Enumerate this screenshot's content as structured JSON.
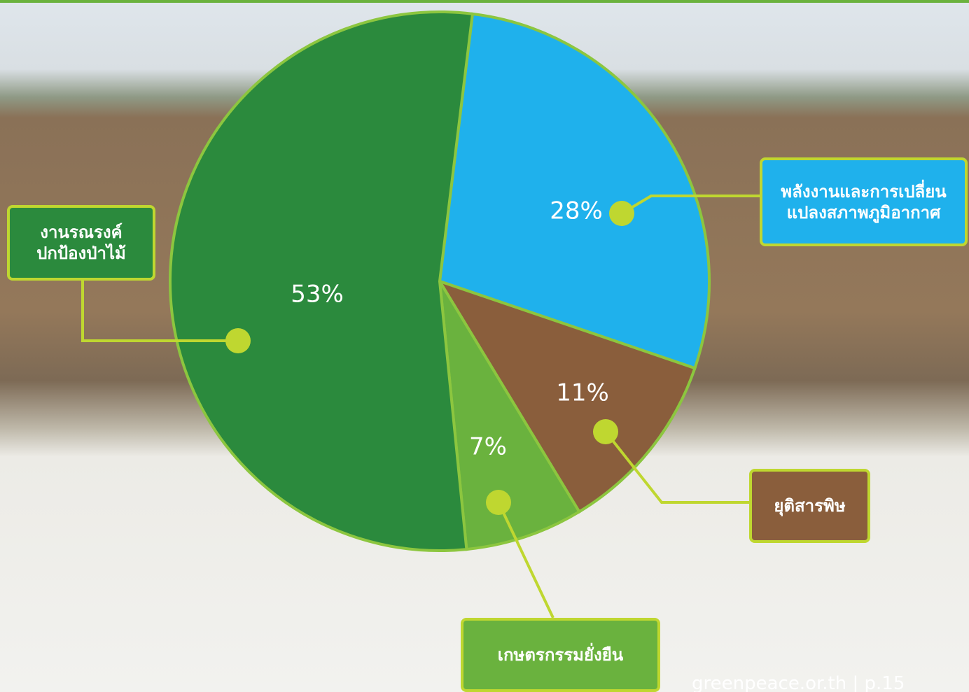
{
  "chart_data": {
    "type": "pie",
    "categories": [
      "พลังงานและการเปลี่ยน\nแปลงสภาพภูมิอากาศ",
      "ยุติสารพิษ",
      "เกษตรกรรมยั่งยืน",
      "งานรณรงค์\nปกป้องป่าไม้"
    ],
    "values": [
      28,
      11,
      7,
      53
    ],
    "value_labels": [
      "28%",
      "11%",
      "7%",
      "53%"
    ],
    "colors": [
      "#1fb1ec",
      "#8a5e3c",
      "#6ab23e",
      "#2b8a3d"
    ]
  },
  "footer": "greenpeace.or.th | p.15"
}
